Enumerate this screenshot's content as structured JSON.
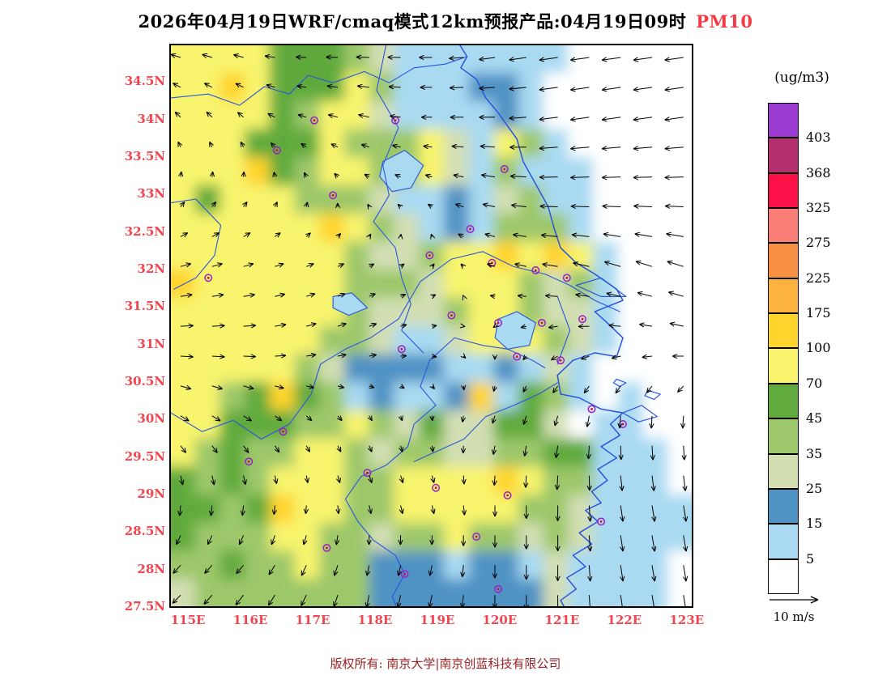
{
  "chart": {
    "title_main": "2026年04月19日WRF/cmaq模式12km预报产品:04月19日09时",
    "title_species": "PM10",
    "title_species_color": "#f43b45"
  },
  "axes": {
    "lat_ticks": [
      "34.5N",
      "34N",
      "33.5N",
      "33N",
      "32.5N",
      "32N",
      "31.5N",
      "31N",
      "30.5N",
      "30N",
      "29.5N",
      "29N",
      "28.5N",
      "28N",
      "27.5N"
    ],
    "lon_ticks": [
      "115E",
      "116E",
      "117E",
      "118E",
      "119E",
      "120E",
      "121E",
      "122E",
      "123E"
    ],
    "tick_color": "#f2444e"
  },
  "legend": {
    "unit": "(ug/m3)",
    "levels": [
      403,
      368,
      325,
      275,
      225,
      175,
      100,
      70,
      45,
      35,
      25,
      15,
      5
    ],
    "colors": [
      "#9a3ad1",
      "#b5306e",
      "#fb1048",
      "#f97e78",
      "#f79043",
      "#fbb23e",
      "#ffd42c",
      "#f8f46d",
      "#61aa3d",
      "#9dc86b",
      "#d3dfb3",
      "#4f93c4",
      "#a9daf2",
      "#ffffff"
    ],
    "wind_label": "10 m/s",
    "wind_speed_ms": 10
  },
  "footer": {
    "copyright": "版权所有: 南京大学|南京创蓝科技有限公司",
    "color": "#9c2022"
  },
  "chart_data": {
    "type": "heatmap",
    "variable": "PM10",
    "unit": "ug/m3",
    "lon_range": [
      114.7,
      123.08
    ],
    "lat_range": [
      27.5,
      35.0
    ],
    "level_bounds": [
      0,
      5,
      15,
      25,
      35,
      45,
      70,
      100,
      175,
      225,
      275,
      325,
      368,
      403
    ],
    "coast_color": "#2a55dd",
    "station_ring_color": "#9b1fc4",
    "station_dot_color": "#c21742",
    "arrow_color": "#000000",
    "grid": {
      "encoding": "each char is a PM10 level index: 0:<5 1:5-15 2:15-25 3:25-35 4:35-45 5:45-70 6:70-100 7:100-175 (ug/m3); rows top(35N) to bottom(27.5N), cols west(114.7E) to east(123.1E)",
      "level_colors": [
        "#ffffff",
        "#a9daf2",
        "#4f93c4",
        "#d3dfb3",
        "#9dc86b",
        "#61aa3d",
        "#f8f46d",
        "#ffd42c"
      ],
      "rows": [
        "666655543111111100000",
        "667655564111221000000",
        "666654663111121000000",
        "666555644463164100000",
        "666754664463141110000",
        "656664443112134110000",
        "666666764312144410000",
        "666666643346676761000",
        "766666644436664341000",
        "666666643334664331000",
        "666666443113666431000",
        "666664322221121310000",
        "664575412112715410100",
        "665554464353355301100",
        "645446643443344551110",
        "545466644666676441110",
        "554576644666664431111",
        "544466443446443431111",
        "445446442221221311110",
        "344444442222222311110"
      ]
    },
    "wind": {
      "scale_ms": 10,
      "lons": [
        114.7,
        115.75,
        116.8,
        117.85,
        118.9,
        119.95,
        121.0,
        122.05,
        123.1
      ],
      "lats": [
        35,
        34,
        33,
        32,
        31,
        30,
        29,
        28,
        27.5
      ],
      "u": [
        [
          -4,
          -4,
          -4,
          -5,
          -5,
          -6,
          -7,
          -7,
          -7
        ],
        [
          -2,
          -2,
          -3,
          -4,
          -4,
          -6,
          -7,
          -7,
          -7
        ],
        [
          1,
          1,
          0,
          -1,
          -2,
          -5,
          -7,
          -7,
          -7
        ],
        [
          4,
          4,
          3,
          2,
          1,
          -3,
          -6,
          -6,
          -6
        ],
        [
          5,
          5,
          4,
          3,
          2,
          0,
          -3,
          -4,
          -5
        ],
        [
          3,
          3,
          2,
          1,
          0,
          -1,
          -1,
          0,
          0
        ],
        [
          0,
          0,
          0,
          1,
          1,
          0,
          0,
          1,
          1
        ],
        [
          -3,
          -3,
          -2,
          -1,
          -1,
          0,
          0,
          1,
          1
        ],
        [
          -3,
          -3,
          -2,
          -1,
          -1,
          0,
          0,
          1,
          1
        ]
      ],
      "v": [
        [
          1,
          1,
          0,
          0,
          0,
          -1,
          -1,
          -1,
          -1
        ],
        [
          2,
          2,
          1,
          1,
          0,
          0,
          -1,
          -1,
          -1
        ],
        [
          2,
          2,
          2,
          1,
          1,
          1,
          0,
          0,
          0
        ],
        [
          1,
          1,
          1,
          1,
          1,
          1,
          1,
          2,
          2
        ],
        [
          0,
          0,
          1,
          1,
          0,
          -1,
          -1,
          0,
          1
        ],
        [
          -2,
          -2,
          -2,
          -2,
          -2,
          -3,
          -4,
          -5,
          -5
        ],
        [
          -4,
          -4,
          -3,
          -3,
          -3,
          -4,
          -6,
          -6,
          -6
        ],
        [
          -3,
          -3,
          -4,
          -4,
          -4,
          -5,
          -6,
          -6,
          -6
        ],
        [
          -3,
          -4,
          -4,
          -5,
          -5,
          -5,
          -6,
          -6,
          -6
        ]
      ]
    },
    "stations_lonlat": [
      [
        117.0,
        34.0
      ],
      [
        118.3,
        34.0
      ],
      [
        116.4,
        33.6
      ],
      [
        120.05,
        33.35
      ],
      [
        117.3,
        33.0
      ],
      [
        119.5,
        32.55
      ],
      [
        118.85,
        32.2
      ],
      [
        119.85,
        32.1
      ],
      [
        120.55,
        32.0
      ],
      [
        121.05,
        31.9
      ],
      [
        119.2,
        31.4
      ],
      [
        119.95,
        31.3
      ],
      [
        120.65,
        31.3
      ],
      [
        121.3,
        31.35
      ],
      [
        118.4,
        30.95
      ],
      [
        120.25,
        30.85
      ],
      [
        120.95,
        30.8
      ],
      [
        121.45,
        30.15
      ],
      [
        121.95,
        29.95
      ],
      [
        116.5,
        29.85
      ],
      [
        115.95,
        29.45
      ],
      [
        117.85,
        29.3
      ],
      [
        118.95,
        29.1
      ],
      [
        120.1,
        29.0
      ],
      [
        121.6,
        28.65
      ],
      [
        119.6,
        28.45
      ],
      [
        117.2,
        28.3
      ],
      [
        118.45,
        27.95
      ],
      [
        119.95,
        27.75
      ],
      [
        115.3,
        31.9
      ]
    ],
    "coastlines": [
      [
        [
          119.3,
          35.05
        ],
        [
          119.45,
          34.85
        ],
        [
          119.35,
          34.7
        ],
        [
          119.6,
          34.55
        ],
        [
          119.75,
          34.3
        ],
        [
          119.95,
          34.1
        ],
        [
          120.25,
          33.75
        ],
        [
          120.35,
          33.45
        ],
        [
          120.55,
          33.15
        ],
        [
          120.75,
          32.85
        ],
        [
          120.85,
          32.55
        ],
        [
          120.95,
          32.3
        ],
        [
          121.2,
          32.1
        ],
        [
          121.5,
          31.95
        ],
        [
          121.85,
          31.75
        ],
        [
          121.95,
          31.6
        ],
        [
          121.5,
          31.45
        ],
        [
          121.7,
          31.3
        ],
        [
          121.95,
          31.1
        ],
        [
          121.85,
          30.85
        ],
        [
          121.5,
          30.9
        ],
        [
          121.15,
          30.8
        ],
        [
          120.9,
          30.6
        ],
        [
          120.95,
          30.35
        ],
        [
          121.25,
          30.3
        ],
        [
          121.6,
          30.15
        ],
        [
          121.95,
          30.1
        ],
        [
          121.75,
          29.95
        ],
        [
          121.9,
          29.8
        ],
        [
          121.6,
          29.65
        ],
        [
          121.85,
          29.5
        ],
        [
          121.55,
          29.35
        ],
        [
          121.7,
          29.2
        ],
        [
          121.45,
          29.05
        ],
        [
          121.6,
          28.9
        ],
        [
          121.35,
          28.8
        ],
        [
          121.55,
          28.65
        ],
        [
          121.25,
          28.5
        ],
        [
          121.45,
          28.35
        ],
        [
          121.15,
          28.2
        ],
        [
          121.35,
          28.05
        ],
        [
          121.05,
          27.9
        ],
        [
          121.2,
          27.75
        ],
        [
          120.95,
          27.6
        ],
        [
          121.05,
          27.45
        ]
      ]
    ],
    "boundaries": [
      [
        [
          114.7,
          34.3
        ],
        [
          115.3,
          34.35
        ],
        [
          115.8,
          34.2
        ],
        [
          116.2,
          34.45
        ],
        [
          116.6,
          34.35
        ],
        [
          116.9,
          34.6
        ],
        [
          117.3,
          34.5
        ],
        [
          117.8,
          34.65
        ],
        [
          118.2,
          34.5
        ],
        [
          118.6,
          34.7
        ],
        [
          119.1,
          34.75
        ],
        [
          119.45,
          34.85
        ]
      ],
      [
        [
          118.15,
          35.0
        ],
        [
          118.0,
          34.4
        ],
        [
          118.35,
          33.9
        ],
        [
          118.1,
          33.4
        ],
        [
          118.2,
          33.0
        ],
        [
          117.95,
          32.65
        ],
        [
          118.3,
          32.3
        ],
        [
          118.4,
          31.9
        ],
        [
          118.55,
          31.55
        ],
        [
          118.4,
          31.2
        ],
        [
          118.75,
          30.9
        ]
      ],
      [
        [
          114.7,
          32.9
        ],
        [
          115.1,
          32.95
        ],
        [
          115.5,
          32.6
        ],
        [
          115.4,
          32.2
        ],
        [
          115.1,
          31.9
        ],
        [
          114.75,
          31.75
        ]
      ],
      [
        [
          114.7,
          30.1
        ],
        [
          115.2,
          29.85
        ],
        [
          115.7,
          30.0
        ],
        [
          116.15,
          29.75
        ],
        [
          116.6,
          29.95
        ],
        [
          116.95,
          30.35
        ],
        [
          117.1,
          30.75
        ],
        [
          117.5,
          30.95
        ],
        [
          117.9,
          31.1
        ],
        [
          118.35,
          31.35
        ],
        [
          118.7,
          31.85
        ],
        [
          119.2,
          32.15
        ],
        [
          119.7,
          32.25
        ],
        [
          120.2,
          32.05
        ],
        [
          120.7,
          31.95
        ],
        [
          121.1,
          31.8
        ],
        [
          121.5,
          31.6
        ],
        [
          121.9,
          31.45
        ]
      ],
      [
        [
          118.85,
          30.8
        ],
        [
          118.7,
          30.45
        ],
        [
          118.95,
          30.2
        ],
        [
          118.6,
          29.95
        ],
        [
          118.5,
          29.65
        ],
        [
          118.15,
          29.4
        ],
        [
          117.75,
          29.25
        ],
        [
          117.5,
          28.95
        ],
        [
          117.7,
          28.65
        ],
        [
          117.95,
          28.4
        ],
        [
          118.3,
          28.2
        ],
        [
          118.45,
          27.95
        ],
        [
          118.25,
          27.65
        ],
        [
          118.35,
          27.45
        ]
      ],
      [
        [
          118.85,
          30.8
        ],
        [
          119.25,
          31.1
        ],
        [
          119.7,
          31.0
        ],
        [
          120.1,
          30.95
        ],
        [
          120.5,
          30.8
        ],
        [
          120.7,
          30.7
        ]
      ],
      [
        [
          120.9,
          31.65
        ],
        [
          121.1,
          31.2
        ],
        [
          120.9,
          30.75
        ]
      ],
      [
        [
          118.6,
          29.45
        ],
        [
          119.0,
          29.6
        ],
        [
          119.4,
          29.75
        ],
        [
          119.75,
          30.05
        ],
        [
          120.2,
          30.2
        ],
        [
          120.6,
          30.35
        ],
        [
          120.9,
          30.5
        ]
      ]
    ],
    "lakes": [
      [
        [
          119.95,
          31.35
        ],
        [
          120.25,
          31.45
        ],
        [
          120.55,
          31.3
        ],
        [
          120.45,
          31.0
        ],
        [
          120.1,
          30.95
        ],
        [
          119.9,
          31.1
        ]
      ],
      [
        [
          118.1,
          33.45
        ],
        [
          118.45,
          33.6
        ],
        [
          118.75,
          33.4
        ],
        [
          118.55,
          33.1
        ],
        [
          118.25,
          33.05
        ],
        [
          118.05,
          33.25
        ]
      ],
      [
        [
          117.3,
          31.65
        ],
        [
          117.6,
          31.7
        ],
        [
          117.85,
          31.5
        ],
        [
          117.55,
          31.4
        ],
        [
          117.3,
          31.5
        ]
      ]
    ],
    "islands": [
      [
        [
          121.2,
          31.8
        ],
        [
          121.6,
          31.9
        ],
        [
          122.0,
          31.65
        ],
        [
          121.6,
          31.65
        ]
      ],
      [
        [
          121.95,
          30.1
        ],
        [
          122.25,
          30.2
        ],
        [
          122.5,
          30.05
        ],
        [
          122.2,
          29.98
        ]
      ],
      [
        [
          122.35,
          30.4
        ],
        [
          122.55,
          30.35
        ],
        [
          122.45,
          30.28
        ],
        [
          122.3,
          30.33
        ]
      ],
      [
        [
          121.85,
          30.55
        ],
        [
          122.0,
          30.5
        ],
        [
          121.9,
          30.45
        ],
        [
          121.8,
          30.5
        ]
      ]
    ]
  }
}
